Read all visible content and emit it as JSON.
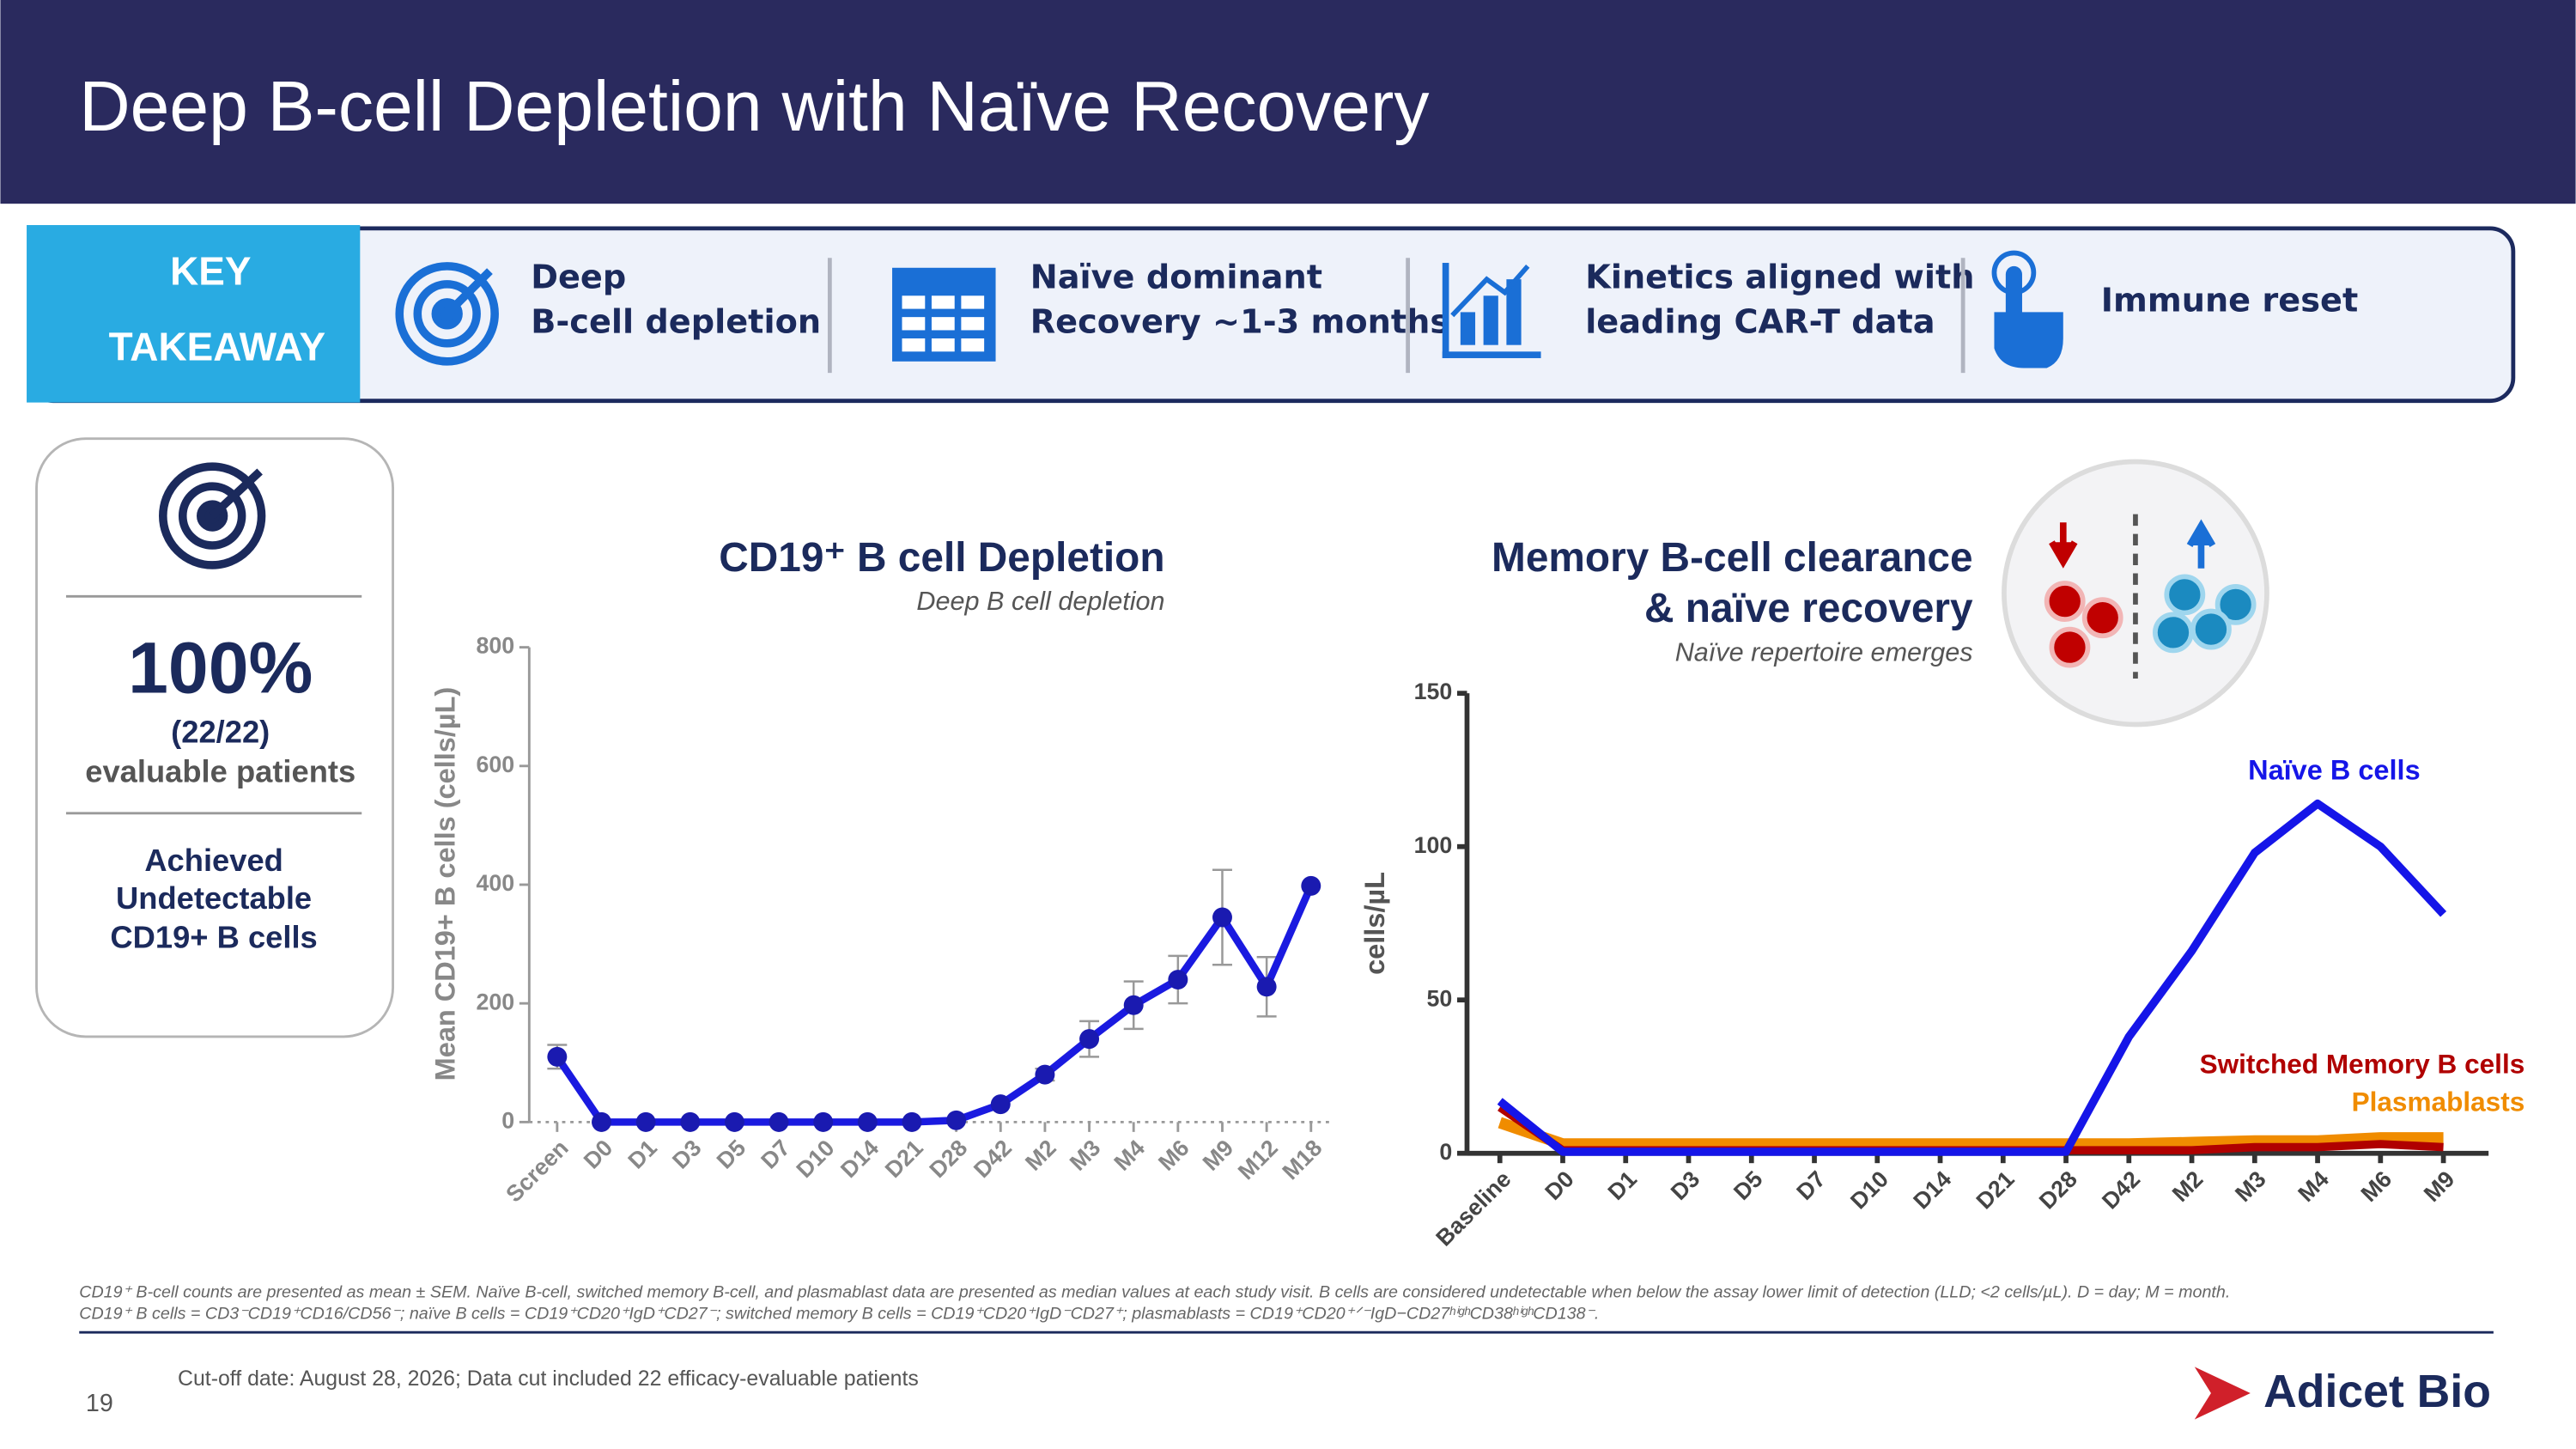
{
  "header": {
    "title": "Deep B-cell Depletion with Naïve Recovery"
  },
  "key_takeaway": {
    "label": [
      "KEY",
      "TAKEAWAY"
    ],
    "items": [
      [
        "Deep",
        "B-cell depletion"
      ],
      [
        "Naïve dominant",
        "Recovery ~1-3 months"
      ],
      [
        "Kinetics aligned with",
        "leading CAR-T data"
      ],
      [
        "Immune reset"
      ]
    ]
  },
  "summary_card": {
    "stat": "100%",
    "count": "(22/22)",
    "caption": "evaluable patients",
    "note": [
      "Achieved",
      "Undetectable",
      "CD19+ B cells"
    ]
  },
  "chart_data": [
    {
      "type": "line",
      "title": "CD19⁺ B cell Depletion",
      "subtitle": "Deep B cell depletion",
      "y_label": "Mean CD19+ B cells (cells/µL)",
      "categories": [
        "Screen",
        "D0",
        "D1",
        "D3",
        "D5",
        "D7",
        "D10",
        "D14",
        "D21",
        "D28",
        "D42",
        "M2",
        "M3",
        "M4",
        "M6",
        "M9",
        "M12",
        "M18"
      ],
      "series": [
        {
          "name": "CD19+ B cells",
          "color": "#1a1ae0",
          "values": [
            110,
            0,
            0,
            0,
            0,
            0,
            0,
            0,
            0,
            3,
            30,
            80,
            140,
            197,
            240,
            345,
            228,
            398
          ],
          "errors": [
            20,
            null,
            null,
            null,
            null,
            null,
            null,
            null,
            null,
            null,
            null,
            10,
            30,
            40,
            40,
            80,
            50,
            null
          ]
        }
      ],
      "ylim": [
        0,
        800
      ],
      "yticks": [
        0,
        200,
        400,
        600,
        800
      ]
    },
    {
      "type": "line",
      "title": [
        "Memory B-cell clearance",
        "& naïve recovery"
      ],
      "subtitle": "Naïve repertoire emerges",
      "y_label": "cells/µL",
      "categories": [
        "Baseline",
        "D0",
        "D1",
        "D3",
        "D5",
        "D7",
        "D10",
        "D14",
        "D21",
        "D28",
        "D42",
        "M2",
        "M3",
        "M4",
        "M6",
        "M9"
      ],
      "series": [
        {
          "name": "Naïve B cells",
          "color": "#1515e8",
          "values": [
            17,
            0.5,
            0.5,
            0.5,
            0.5,
            0.5,
            0.5,
            0.5,
            0.5,
            0.5,
            38,
            66,
            98,
            114,
            100,
            78
          ]
        },
        {
          "name": "Switched Memory B cells",
          "color": "#b00000",
          "values": [
            15,
            1,
            1,
            1,
            1,
            1,
            1,
            1,
            1,
            1,
            1,
            1,
            2,
            2,
            3,
            2
          ]
        },
        {
          "name": "Plasmablasts",
          "color": "#f08c00",
          "values": [
            10,
            3,
            3,
            3,
            3,
            3,
            3,
            3,
            3,
            3,
            3,
            3.5,
            4,
            4,
            5,
            5
          ]
        }
      ],
      "ylim": [
        0,
        150
      ],
      "yticks": [
        0,
        50,
        100,
        150
      ]
    }
  ],
  "footnotes": [
    "CD19⁺ B-cell counts are presented as mean ± SEM. Naïve B-cell, switched memory B-cell, and plasmablast data are presented as median values at each study visit. B cells are considered undetectable when below the assay lower limit of detection (LLD; <2 cells/µL). D = day; M = month.",
    "CD19⁺ B cells = CD3⁻CD19⁺CD16/CD56⁻; naïve B cells = CD19⁺CD20⁺IgD⁺CD27⁻; switched memory B cells = CD19⁺CD20⁺IgD⁻CD27⁺; plasmablasts = CD19⁺CD20⁺ᐟ⁻IgD−CD27ʰⁱᵍʰCD38ʰⁱᵍʰCD138⁻."
  ],
  "footer": {
    "cutoff": "Cut-off date: August 28, 2026; Data cut included 22 efficacy-evaluable patients",
    "page": "19",
    "logo": "Adicet Bio"
  }
}
